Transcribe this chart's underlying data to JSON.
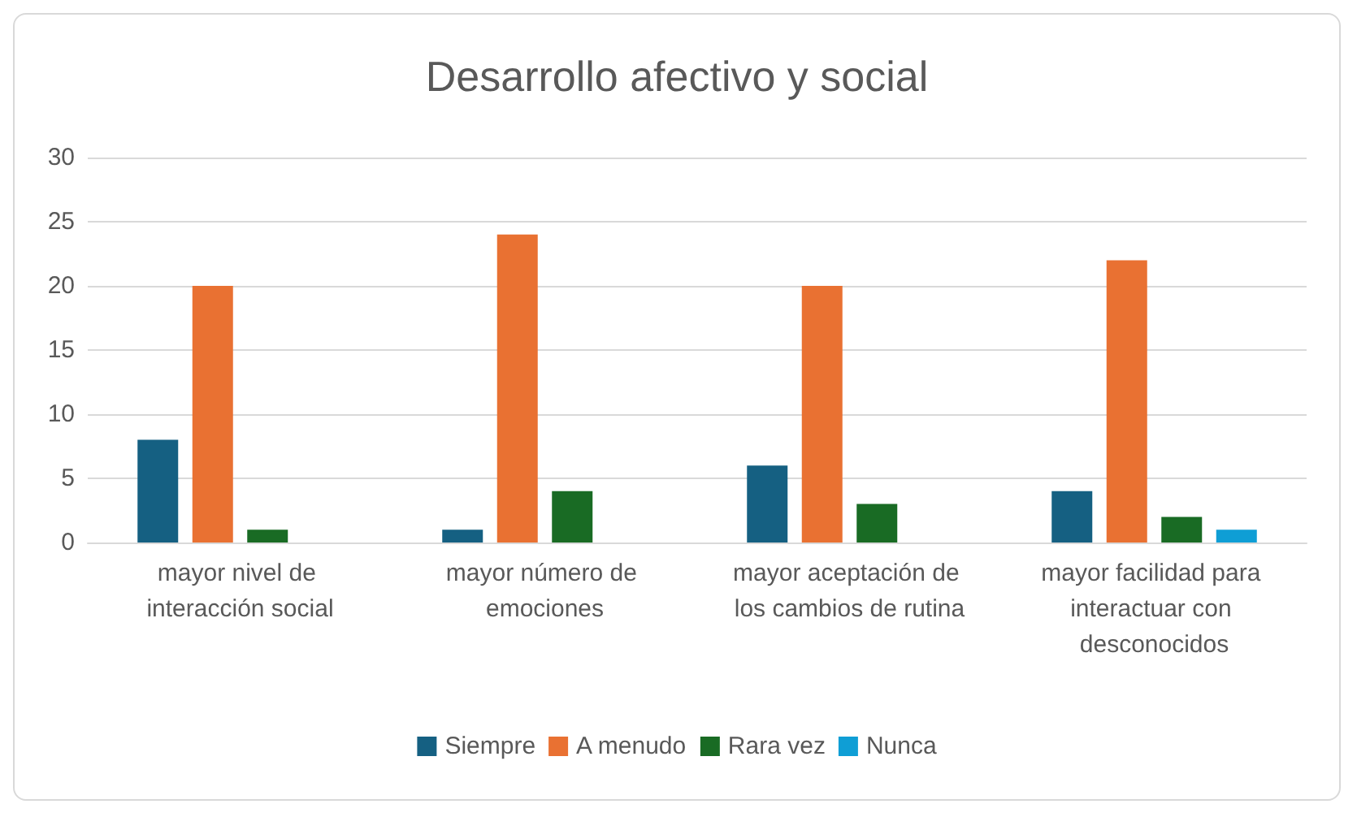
{
  "chart_data": {
    "type": "bar",
    "title": "Desarrollo afectivo y social",
    "categories": [
      "mayor nivel de interacción social",
      "mayor número de emociones",
      "mayor aceptación de los cambios de rutina",
      "mayor facilidad para interactuar con desconocidos"
    ],
    "series": [
      {
        "name": "Siempre",
        "color": "#156082",
        "values": [
          8,
          1,
          6,
          4
        ]
      },
      {
        "name": "A menudo",
        "color": "#e97132",
        "values": [
          20,
          24,
          20,
          22
        ]
      },
      {
        "name": "Rara vez",
        "color": "#196b24",
        "values": [
          1,
          4,
          3,
          2
        ]
      },
      {
        "name": "Nunca",
        "color": "#0f9ed5",
        "values": [
          0,
          0,
          0,
          1
        ]
      }
    ],
    "ylim": [
      0,
      30
    ],
    "yticks": [
      0,
      5,
      10,
      15,
      20,
      25,
      30
    ],
    "grid": "y",
    "legend": "bottom"
  }
}
